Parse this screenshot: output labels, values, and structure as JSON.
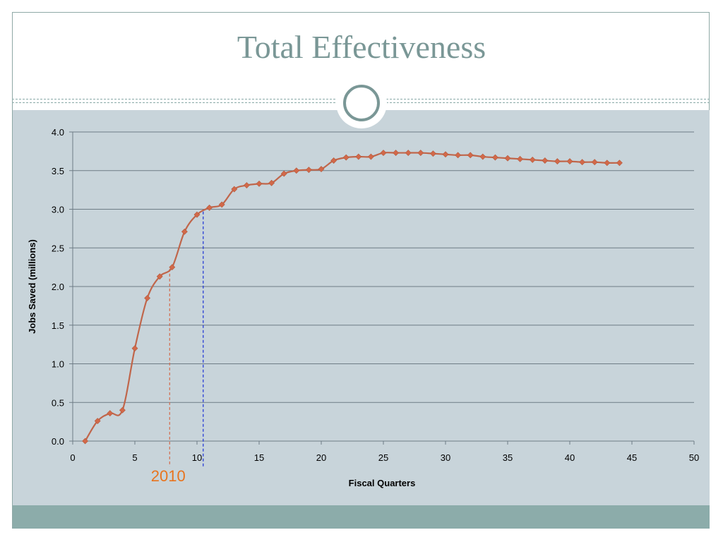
{
  "slide": {
    "title": "Total Effectiveness"
  },
  "colors": {
    "title": "#7a9796",
    "content_bg": "#c8d4da",
    "footer_band": "#8cacaa",
    "series_line": "#c0664b",
    "marker": "#d2694a",
    "annotation_text": "#e8741e",
    "annotation_line_red": "#d46a4a",
    "annotation_line_blue": "#1a2fd6",
    "gridline": "#6e7c86"
  },
  "chart_data": {
    "type": "line",
    "title": "",
    "xlabel": "Fiscal Quarters",
    "ylabel": "Jobs Saved (millions)",
    "xlim": [
      0,
      50
    ],
    "ylim": [
      0,
      4.0
    ],
    "xticks": [
      0,
      5,
      10,
      15,
      20,
      25,
      30,
      35,
      40,
      45,
      50
    ],
    "yticks": [
      0.0,
      0.5,
      1.0,
      1.5,
      2.0,
      2.5,
      3.0,
      3.5,
      4.0
    ],
    "ytick_labels": [
      "0.0",
      "0.5",
      "1.0",
      "1.5",
      "2.0",
      "2.5",
      "3.0",
      "3.5",
      "4.0"
    ],
    "grid": "horizontal",
    "legend": "none",
    "x": [
      1,
      2,
      3,
      4,
      5,
      6,
      7,
      8,
      9,
      10,
      11,
      12,
      13,
      14,
      15,
      16,
      17,
      18,
      19,
      20,
      21,
      22,
      23,
      24,
      25,
      26,
      27,
      28,
      29,
      30,
      31,
      32,
      33,
      34,
      35,
      36,
      37,
      38,
      39,
      40,
      41,
      42,
      43,
      44
    ],
    "y": [
      0.0,
      0.26,
      0.36,
      0.4,
      1.2,
      1.85,
      2.13,
      2.25,
      2.71,
      2.93,
      3.02,
      3.06,
      3.26,
      3.31,
      3.33,
      3.34,
      3.46,
      3.5,
      3.51,
      3.52,
      3.63,
      3.67,
      3.68,
      3.68,
      3.73,
      3.73,
      3.73,
      3.73,
      3.72,
      3.71,
      3.7,
      3.7,
      3.68,
      3.67,
      3.66,
      3.65,
      3.64,
      3.63,
      3.62,
      3.62,
      3.61,
      3.61,
      3.6,
      3.6
    ],
    "annotations": [
      {
        "label": "2010",
        "x": 7.8,
        "y_top": 2.23,
        "style": "dashed",
        "color_key": "annotation_line_red"
      },
      {
        "label": "",
        "x": 10.5,
        "y_top": 2.97,
        "style": "dashed",
        "color_key": "annotation_line_blue"
      }
    ]
  }
}
